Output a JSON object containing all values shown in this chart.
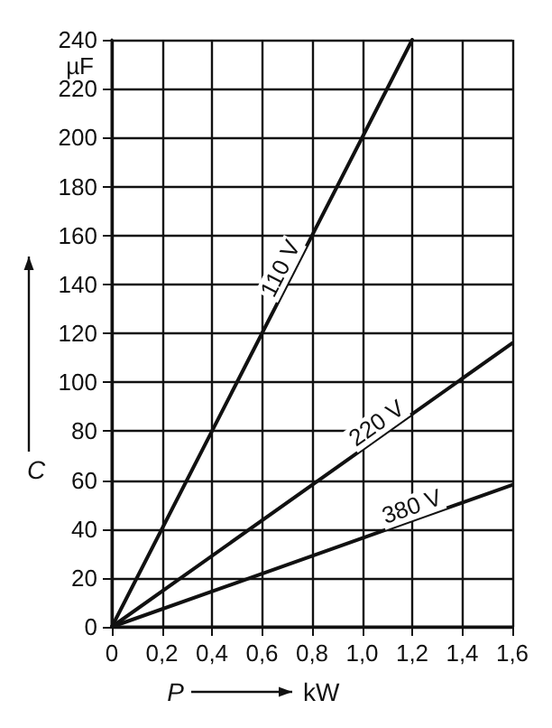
{
  "chart_data": {
    "type": "line",
    "xlabel": "P",
    "ylabel": "C",
    "series": [
      {
        "name": "110 V",
        "color": "#111111",
        "x": [
          0,
          1.2
        ],
        "values": [
          0,
          240
        ]
      },
      {
        "name": "220 V",
        "color": "#111111",
        "x": [
          0,
          1.6
        ],
        "values": [
          0,
          116
        ]
      },
      {
        "name": "380 V",
        "color": "#111111",
        "x": [
          0,
          1.6
        ],
        "values": [
          0,
          58
        ]
      }
    ],
    "annotations": [
      "µF",
      "kW"
    ],
    "xlim": [
      0,
      1.6
    ],
    "xticks": [
      0,
      {
        "value": 0.2,
        "label": "0,2"
      },
      {
        "value": 0.4,
        "label": "0,4"
      },
      {
        "value": 0.6,
        "label": "0,6"
      },
      {
        "value": 0.8,
        "label": "0,8"
      },
      {
        "value": 1.0,
        "label": "1,0"
      },
      {
        "value": 1.2,
        "label": "1,2"
      },
      {
        "value": 1.4,
        "label": "1,4"
      },
      {
        "value": 1.6,
        "label": "1,6"
      }
    ],
    "ylim": [
      0,
      240
    ],
    "yticks": [
      0,
      20,
      40,
      60,
      80,
      100,
      120,
      140,
      160,
      180,
      200,
      220,
      240
    ],
    "grid": true,
    "marker": "none",
    "line_style": "solid"
  }
}
